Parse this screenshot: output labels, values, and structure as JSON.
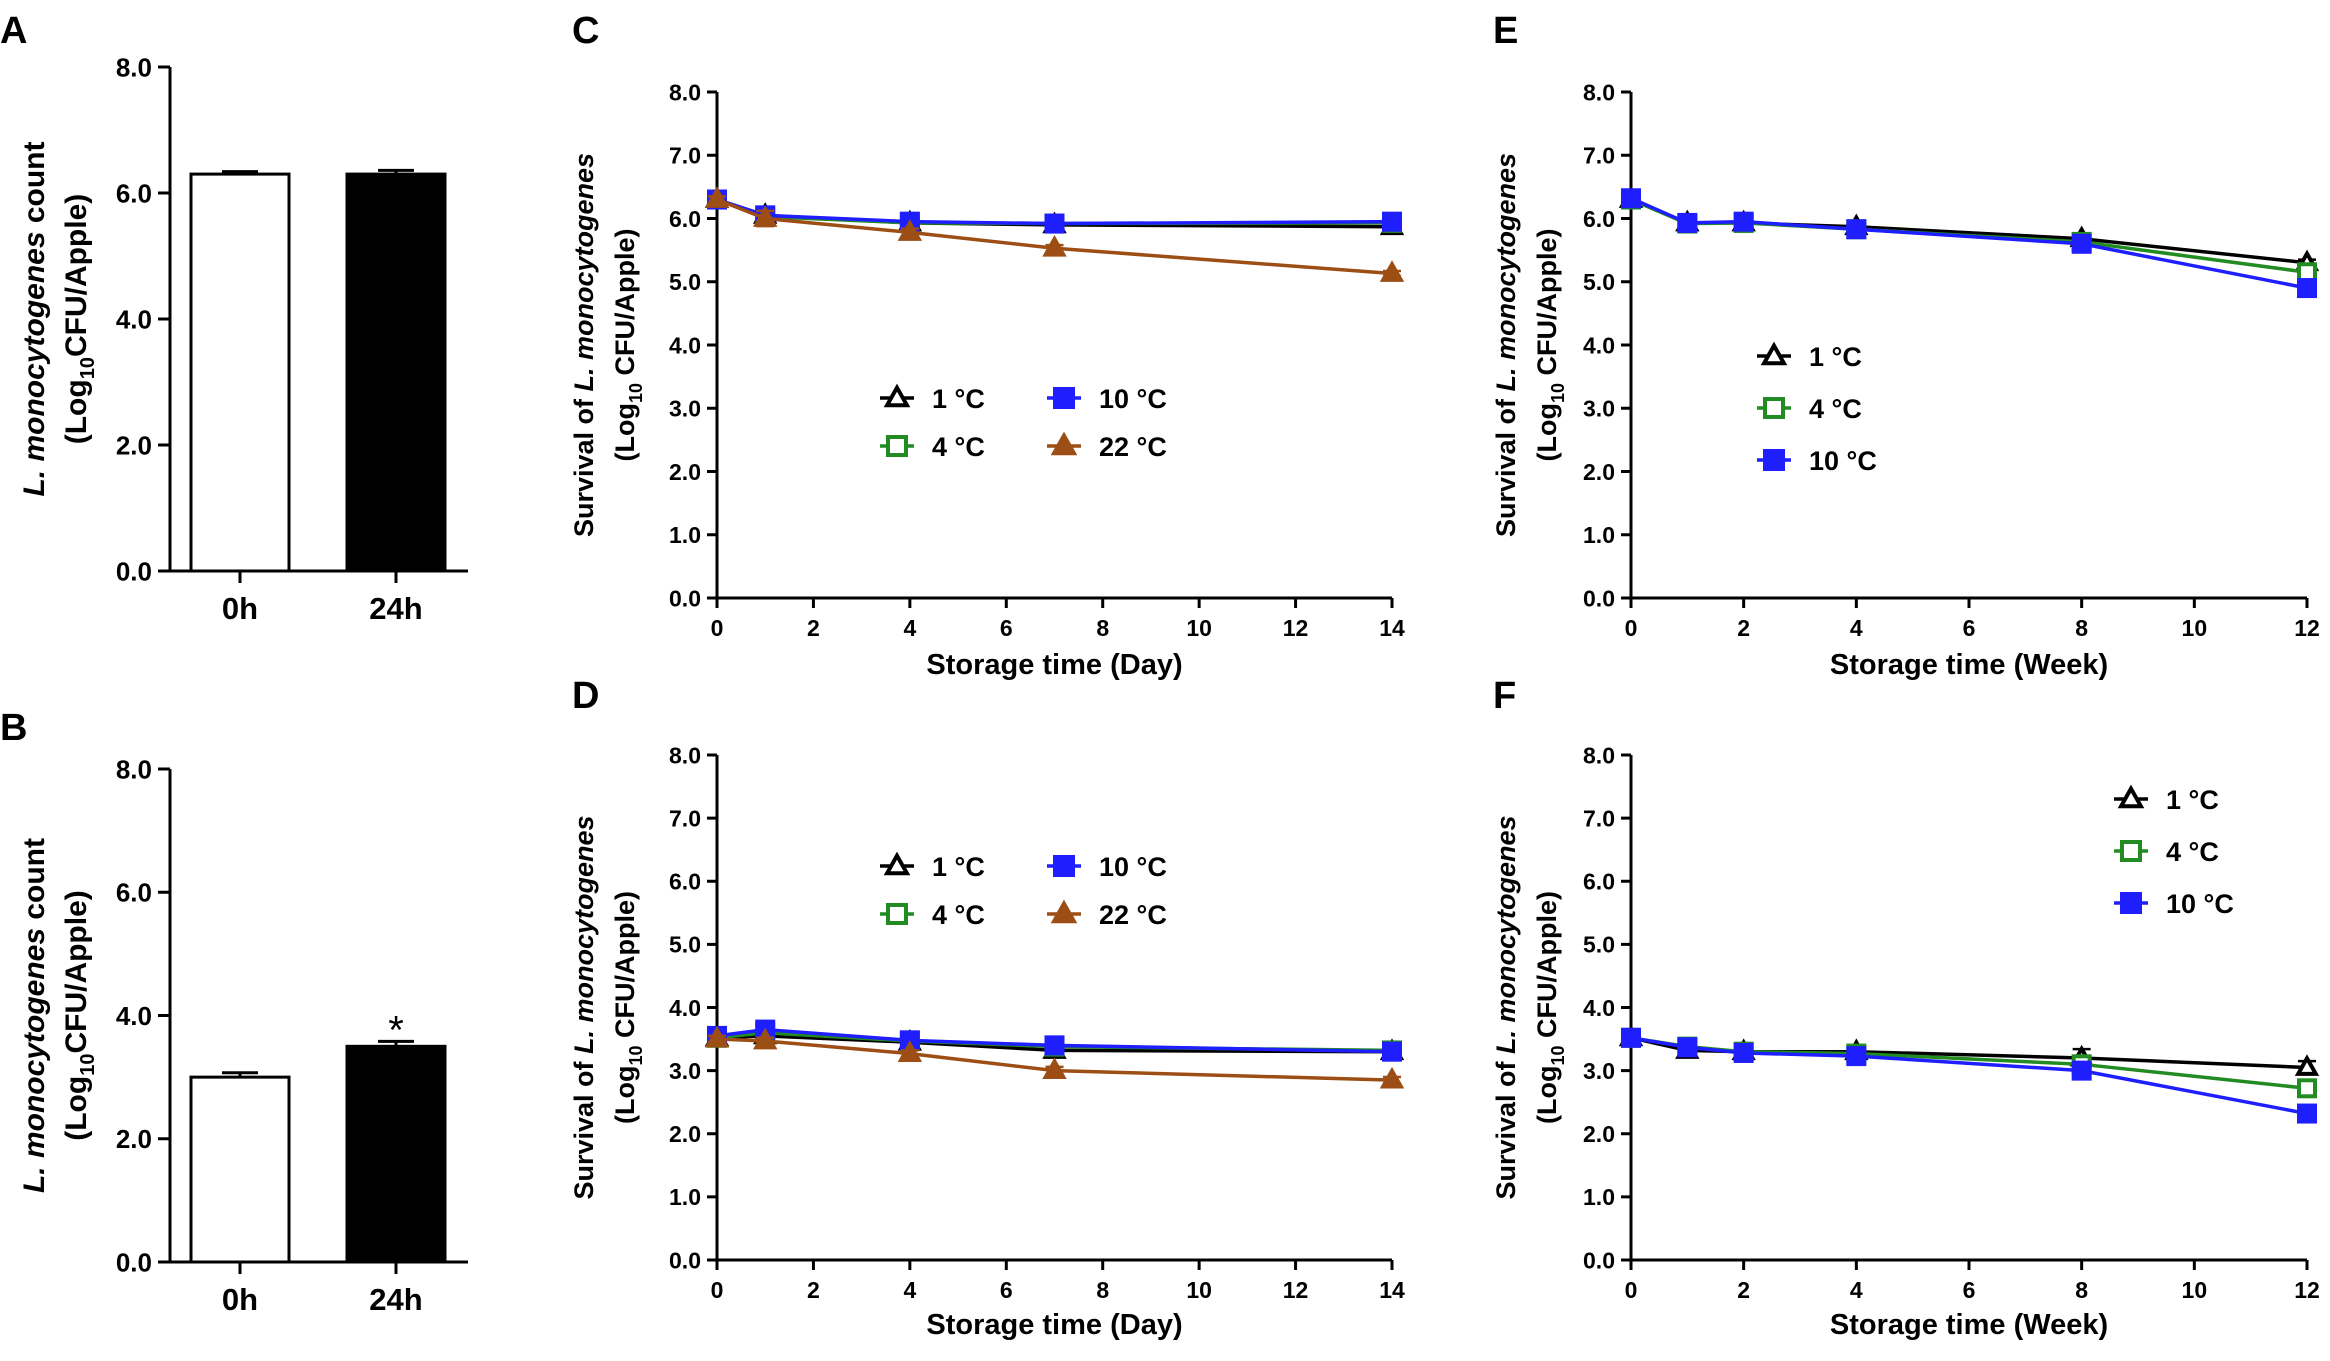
{
  "palette": {
    "t1": "#000000",
    "t4": "#228B22",
    "t10": "#1E1EFF",
    "t22": "#9C4E14",
    "bar_0h": "#ffffff",
    "bar_24h": "#000000"
  },
  "chart_data": [
    {
      "panel": "A",
      "type": "bar",
      "categories": [
        "0h",
        "24h"
      ],
      "values": [
        6.3,
        6.3
      ],
      "errors": [
        0.04,
        0.06
      ],
      "ylim": [
        0,
        8
      ],
      "yticks": [
        "0.0",
        "2.0",
        "4.0",
        "6.0",
        "8.0"
      ],
      "ylabel_line1_italic": "L. monocytogenes",
      "ylabel_line1_rest": " count",
      "ylabel_line2_pre": "(Log",
      "ylabel_line2_sub": "10",
      "ylabel_line2_post": "CFU/Apple)",
      "annotations": []
    },
    {
      "panel": "B",
      "type": "bar",
      "categories": [
        "0h",
        "24h"
      ],
      "values": [
        3.0,
        3.5
      ],
      "errors": [
        0.07,
        0.08
      ],
      "ylim": [
        0,
        8
      ],
      "yticks": [
        "0.0",
        "2.0",
        "4.0",
        "6.0",
        "8.0"
      ],
      "ylabel_line1_italic": "L. monocytogenes",
      "ylabel_line1_rest": " count",
      "ylabel_line2_pre": "(Log",
      "ylabel_line2_sub": "10",
      "ylabel_line2_post": "CFU/Apple)",
      "annotations": [
        {
          "category": "24h",
          "text": "*"
        }
      ]
    },
    {
      "panel": "C",
      "type": "line",
      "xlabel": "Storage time (Day)",
      "xlim": [
        0,
        14
      ],
      "xticks": [
        0,
        2,
        4,
        6,
        8,
        10,
        12,
        14
      ],
      "ylim": [
        0,
        8
      ],
      "yticks": [
        "0.0",
        "1.0",
        "2.0",
        "3.0",
        "4.0",
        "5.0",
        "6.0",
        "7.0",
        "8.0"
      ],
      "ylabel_line1_pre": "Survival of ",
      "ylabel_line1_italic": "L. monocytogenes",
      "ylabel_line2_pre": "(Log",
      "ylabel_line2_sub": "10",
      "ylabel_line2_post": " CFU/Apple)",
      "legend_layout": "two-column",
      "series": [
        {
          "name": "1 °C",
          "color_key": "t1",
          "marker": "triangle-open",
          "x": [
            0,
            1,
            4,
            7,
            14
          ],
          "y": [
            6.3,
            6.05,
            5.93,
            5.9,
            5.87
          ],
          "err": [
            0.05,
            0.1,
            0.05,
            0.05,
            0.05
          ]
        },
        {
          "name": "4 °C",
          "color_key": "t4",
          "marker": "square-open",
          "x": [
            0,
            1,
            4,
            7,
            14
          ],
          "y": [
            6.3,
            6.03,
            5.93,
            5.92,
            5.93
          ],
          "err": [
            0.05,
            0.1,
            0.05,
            0.05,
            0.05
          ]
        },
        {
          "name": "10 °C",
          "color_key": "t10",
          "marker": "square",
          "x": [
            0,
            1,
            4,
            7,
            14
          ],
          "y": [
            6.3,
            6.05,
            5.95,
            5.92,
            5.95
          ],
          "err": [
            0.05,
            0.1,
            0.05,
            0.05,
            0.05
          ]
        },
        {
          "name": "22 °C",
          "color_key": "t22",
          "marker": "triangle",
          "x": [
            0,
            1,
            4,
            7,
            14
          ],
          "y": [
            6.3,
            6.0,
            5.78,
            5.53,
            5.13
          ],
          "err": [
            0.05,
            0.12,
            0.06,
            0.05,
            0.04
          ]
        }
      ]
    },
    {
      "panel": "D",
      "type": "line",
      "xlabel": "Storage time (Day)",
      "xlim": [
        0,
        14
      ],
      "xticks": [
        0,
        2,
        4,
        6,
        8,
        10,
        12,
        14
      ],
      "ylim": [
        0,
        8
      ],
      "yticks": [
        "0.0",
        "1.0",
        "2.0",
        "3.0",
        "4.0",
        "5.0",
        "6.0",
        "7.0",
        "8.0"
      ],
      "ylabel_line1_pre": "Survival of ",
      "ylabel_line1_italic": "L. monocytogenes",
      "ylabel_line2_pre": "(Log",
      "ylabel_line2_sub": "10",
      "ylabel_line2_post": " CFU/Apple)",
      "legend_layout": "two-column",
      "series": [
        {
          "name": "1 °C",
          "color_key": "t1",
          "marker": "triangle-open",
          "x": [
            0,
            1,
            4,
            7,
            14
          ],
          "y": [
            3.52,
            3.55,
            3.45,
            3.32,
            3.3
          ],
          "err": [
            0.05,
            0.05,
            0.05,
            0.06,
            0.05
          ]
        },
        {
          "name": "4 °C",
          "color_key": "t4",
          "marker": "square-open",
          "x": [
            0,
            1,
            4,
            7,
            14
          ],
          "y": [
            3.52,
            3.6,
            3.47,
            3.38,
            3.32
          ],
          "err": [
            0.05,
            0.05,
            0.05,
            0.05,
            0.05
          ]
        },
        {
          "name": "10 °C",
          "color_key": "t10",
          "marker": "square",
          "x": [
            0,
            1,
            4,
            7,
            14
          ],
          "y": [
            3.55,
            3.65,
            3.48,
            3.4,
            3.3
          ],
          "err": [
            0.05,
            0.05,
            0.05,
            0.05,
            0.05
          ]
        },
        {
          "name": "22 °C",
          "color_key": "t22",
          "marker": "triangle",
          "x": [
            0,
            1,
            4,
            7,
            14
          ],
          "y": [
            3.5,
            3.47,
            3.27,
            3.0,
            2.85
          ],
          "err": [
            0.05,
            0.05,
            0.05,
            0.06,
            0.05
          ]
        }
      ]
    },
    {
      "panel": "E",
      "type": "line",
      "xlabel": "Storage time (Week)",
      "xlim": [
        0,
        12
      ],
      "xticks": [
        0,
        2,
        4,
        6,
        8,
        10,
        12
      ],
      "ylim": [
        0,
        8
      ],
      "yticks": [
        "0.0",
        "1.0",
        "2.0",
        "3.0",
        "4.0",
        "5.0",
        "6.0",
        "7.0",
        "8.0"
      ],
      "ylabel_line1_pre": "Survival of ",
      "ylabel_line1_italic": "L. monocytogenes",
      "ylabel_line2_pre": "(Log",
      "ylabel_line2_sub": "10",
      "ylabel_line2_post": " CFU/Apple)",
      "legend_layout": "one-column-left",
      "series": [
        {
          "name": "1 °C",
          "color_key": "t1",
          "marker": "triangle-open",
          "x": [
            0,
            1,
            2,
            4,
            8,
            12
          ],
          "y": [
            6.3,
            5.93,
            5.93,
            5.87,
            5.68,
            5.3
          ],
          "err": [
            0.06,
            0.06,
            0.08,
            0.05,
            0.05,
            0.05
          ]
        },
        {
          "name": "4 °C",
          "color_key": "t4",
          "marker": "square-open",
          "x": [
            0,
            1,
            2,
            4,
            8,
            12
          ],
          "y": [
            6.3,
            5.92,
            5.93,
            5.83,
            5.63,
            5.15
          ],
          "err": [
            0.06,
            0.06,
            0.08,
            0.05,
            0.05,
            0.05
          ]
        },
        {
          "name": "10 °C",
          "color_key": "t10",
          "marker": "square",
          "x": [
            0,
            1,
            2,
            4,
            8,
            12
          ],
          "y": [
            6.32,
            5.93,
            5.95,
            5.83,
            5.6,
            4.9
          ],
          "err": [
            0.06,
            0.06,
            0.08,
            0.05,
            0.05,
            0.05
          ]
        }
      ]
    },
    {
      "panel": "F",
      "type": "line",
      "xlabel": "Storage time (Week)",
      "xlim": [
        0,
        12
      ],
      "xticks": [
        0,
        2,
        4,
        6,
        8,
        10,
        12
      ],
      "ylim": [
        0,
        8
      ],
      "yticks": [
        "0.0",
        "1.0",
        "2.0",
        "3.0",
        "4.0",
        "5.0",
        "6.0",
        "7.0",
        "8.0"
      ],
      "ylabel_line1_pre": "Survival of ",
      "ylabel_line1_italic": "L. monocytogenes",
      "ylabel_line2_pre": "(Log",
      "ylabel_line2_sub": "10",
      "ylabel_line2_post": " CFU/Apple)",
      "legend_layout": "one-column-right",
      "series": [
        {
          "name": "1 °C",
          "color_key": "t1",
          "marker": "triangle-open",
          "x": [
            0,
            1,
            2,
            4,
            8,
            12
          ],
          "y": [
            3.52,
            3.32,
            3.3,
            3.3,
            3.2,
            3.05
          ],
          "err": [
            0.07,
            0.1,
            0.06,
            0.05,
            0.14,
            0.1
          ]
        },
        {
          "name": "4 °C",
          "color_key": "t4",
          "marker": "square-open",
          "x": [
            0,
            1,
            2,
            4,
            8,
            12
          ],
          "y": [
            3.52,
            3.38,
            3.3,
            3.27,
            3.1,
            2.72
          ],
          "err": [
            0.07,
            0.06,
            0.06,
            0.05,
            0.06,
            0.06
          ]
        },
        {
          "name": "10 °C",
          "color_key": "t10",
          "marker": "square",
          "x": [
            0,
            1,
            2,
            4,
            8,
            12
          ],
          "y": [
            3.52,
            3.37,
            3.28,
            3.23,
            3.0,
            2.32
          ],
          "err": [
            0.07,
            0.06,
            0.06,
            0.05,
            0.06,
            0.06
          ]
        }
      ]
    }
  ]
}
